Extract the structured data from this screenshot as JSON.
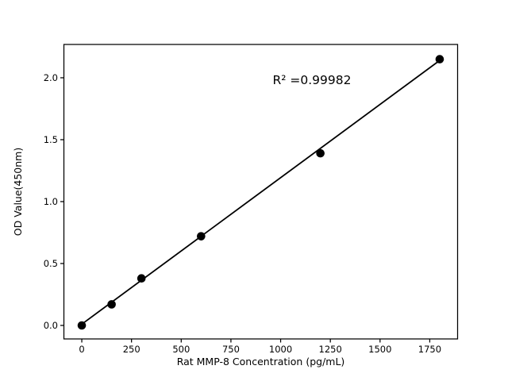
{
  "chart_data": {
    "type": "scatter",
    "title": "",
    "xlabel": "Rat MMP-8 Concentration (pg/mL)",
    "ylabel": "OD Value(450nm)",
    "annotation": "R² =0.99982",
    "x": [
      0,
      150,
      300,
      600,
      1200,
      1800
    ],
    "y": [
      0.0,
      0.17,
      0.38,
      0.72,
      1.39,
      2.15
    ],
    "fit_line": {
      "x": [
        0,
        1800
      ],
      "y": [
        0.01,
        2.14
      ]
    },
    "xticks": [
      "0",
      "250",
      "500",
      "750",
      "1000",
      "1250",
      "1500",
      "1750"
    ],
    "xtick_values": [
      0,
      250,
      500,
      750,
      1000,
      1250,
      1500,
      1750
    ],
    "yticks": [
      "0.0",
      "0.5",
      "1.0",
      "1.5",
      "2.0"
    ],
    "ytick_values": [
      0.0,
      0.5,
      1.0,
      1.5,
      2.0
    ],
    "xlim": [
      -90,
      1890
    ],
    "ylim": [
      -0.109,
      2.269
    ],
    "grid": false,
    "legend": null,
    "marker_color": "#000000",
    "line_color": "#000000",
    "frame_color": "#000000",
    "background": "#ffffff"
  }
}
